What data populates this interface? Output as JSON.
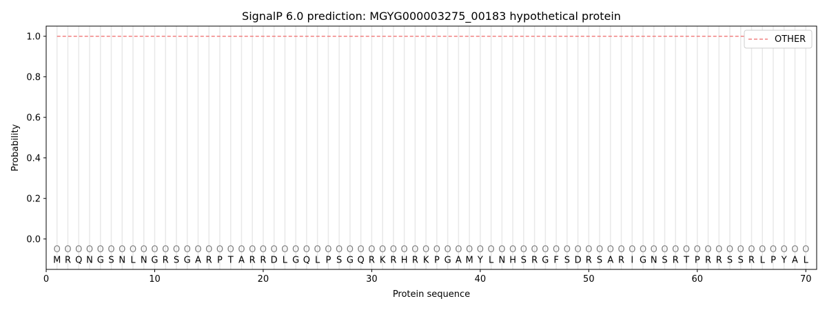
{
  "chart_data": {
    "type": "line",
    "title": "SignalP 6.0 prediction: MGYG000003275_00183 hypothetical protein",
    "xlabel": "Protein sequence",
    "ylabel": "Probability",
    "xlim": [
      0,
      71
    ],
    "ylim": [
      -0.15,
      1.05
    ],
    "xticks": [
      0,
      10,
      20,
      30,
      40,
      50,
      60,
      70
    ],
    "yticks": [
      0.0,
      0.2,
      0.4,
      0.6,
      0.8,
      1.0
    ],
    "ytick_labels": [
      "0.0",
      "0.2",
      "0.4",
      "0.6",
      "0.8",
      "1.0"
    ],
    "sequence": "MRQNGSNLNGRSGARPTARRDLGQLPSGQRKRHRKPGAMYLNHSRGFSDRSARIGNSRTPRRSSRLPYAL",
    "region_label": "O",
    "series": [
      {
        "name": "OTHER",
        "color": "#f08080",
        "style": "dashed",
        "x_range": [
          1,
          70
        ],
        "value": 1.0
      }
    ],
    "legend_position": "top-right",
    "grid": false
  }
}
